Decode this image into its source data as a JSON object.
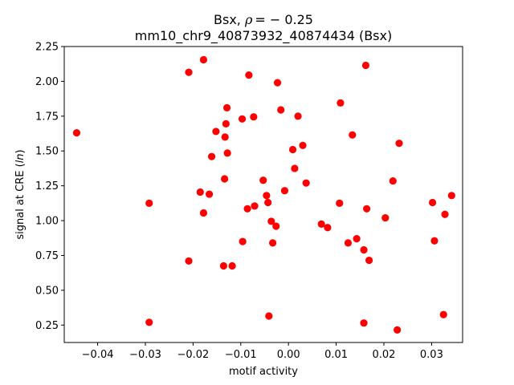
{
  "chart_data": {
    "type": "scatter",
    "title": {
      "prefix": "Bsx, ",
      "rho_symbol": "ρ",
      "rho_value": "= − 0.25",
      "line2": "mm10_chr9_40873932_40874434 (Bsx)"
    },
    "xlabel": "motif activity",
    "ylabel": {
      "prefix": "signal at CRE (",
      "italic": "ln",
      "suffix": ")"
    },
    "xlim": [
      -0.047,
      0.0365
    ],
    "ylim": [
      0.125,
      2.25
    ],
    "x_ticks": [
      -0.04,
      -0.03,
      -0.02,
      -0.01,
      0.0,
      0.01,
      0.02,
      0.03
    ],
    "x_tick_labels": [
      "−0.04",
      "−0.03",
      "−0.02",
      "−0.01",
      "0.00",
      "0.01",
      "0.02",
      "0.03"
    ],
    "y_ticks": [
      0.25,
      0.5,
      0.75,
      1.0,
      1.25,
      1.5,
      1.75,
      2.0,
      2.25
    ],
    "y_tick_labels": [
      "0.25",
      "0.50",
      "0.75",
      "1.00",
      "1.25",
      "1.50",
      "1.75",
      "2.00",
      "2.25"
    ],
    "grid": false,
    "marker_color": "#ff0000",
    "points": [
      {
        "x": -0.0444,
        "y": 1.63
      },
      {
        "x": -0.0292,
        "y": 1.125
      },
      {
        "x": -0.0292,
        "y": 0.27
      },
      {
        "x": -0.0209,
        "y": 2.065
      },
      {
        "x": -0.0209,
        "y": 0.71
      },
      {
        "x": -0.0185,
        "y": 1.205
      },
      {
        "x": -0.0178,
        "y": 2.155
      },
      {
        "x": -0.0178,
        "y": 1.055
      },
      {
        "x": -0.0166,
        "y": 1.19
      },
      {
        "x": -0.0161,
        "y": 1.46
      },
      {
        "x": -0.0152,
        "y": 1.64
      },
      {
        "x": -0.0136,
        "y": 0.675
      },
      {
        "x": -0.0134,
        "y": 1.3
      },
      {
        "x": -0.0133,
        "y": 1.6
      },
      {
        "x": -0.0131,
        "y": 1.695
      },
      {
        "x": -0.0129,
        "y": 1.81
      },
      {
        "x": -0.0128,
        "y": 1.485
      },
      {
        "x": -0.0118,
        "y": 0.675
      },
      {
        "x": -0.0097,
        "y": 1.73
      },
      {
        "x": -0.0096,
        "y": 0.85
      },
      {
        "x": -0.0086,
        "y": 1.085
      },
      {
        "x": -0.0083,
        "y": 2.045
      },
      {
        "x": -0.0073,
        "y": 1.745
      },
      {
        "x": -0.0071,
        "y": 1.105
      },
      {
        "x": -0.0053,
        "y": 1.29
      },
      {
        "x": -0.0046,
        "y": 1.18
      },
      {
        "x": -0.0043,
        "y": 1.13
      },
      {
        "x": -0.0041,
        "y": 0.315
      },
      {
        "x": -0.0036,
        "y": 0.995
      },
      {
        "x": -0.0033,
        "y": 0.84
      },
      {
        "x": -0.0026,
        "y": 0.96
      },
      {
        "x": -0.0023,
        "y": 1.99
      },
      {
        "x": -0.0016,
        "y": 1.795
      },
      {
        "x": -0.0008,
        "y": 1.215
      },
      {
        "x": 0.0009,
        "y": 1.51
      },
      {
        "x": 0.0013,
        "y": 1.375
      },
      {
        "x": 0.002,
        "y": 1.75
      },
      {
        "x": 0.003,
        "y": 1.54
      },
      {
        "x": 0.0037,
        "y": 1.27
      },
      {
        "x": 0.0069,
        "y": 0.975
      },
      {
        "x": 0.0082,
        "y": 0.95
      },
      {
        "x": 0.0107,
        "y": 1.125
      },
      {
        "x": 0.0109,
        "y": 1.845
      },
      {
        "x": 0.0125,
        "y": 0.84
      },
      {
        "x": 0.0134,
        "y": 1.615
      },
      {
        "x": 0.0143,
        "y": 0.87
      },
      {
        "x": 0.0158,
        "y": 0.79
      },
      {
        "x": 0.0158,
        "y": 0.265
      },
      {
        "x": 0.0162,
        "y": 2.115
      },
      {
        "x": 0.0164,
        "y": 1.085
      },
      {
        "x": 0.0169,
        "y": 0.715
      },
      {
        "x": 0.0203,
        "y": 1.02
      },
      {
        "x": 0.0219,
        "y": 1.285
      },
      {
        "x": 0.0228,
        "y": 0.215
      },
      {
        "x": 0.0232,
        "y": 1.555
      },
      {
        "x": 0.0302,
        "y": 1.13
      },
      {
        "x": 0.0306,
        "y": 0.855
      },
      {
        "x": 0.0325,
        "y": 0.325
      },
      {
        "x": 0.0328,
        "y": 1.045
      },
      {
        "x": 0.0342,
        "y": 1.18
      }
    ]
  }
}
